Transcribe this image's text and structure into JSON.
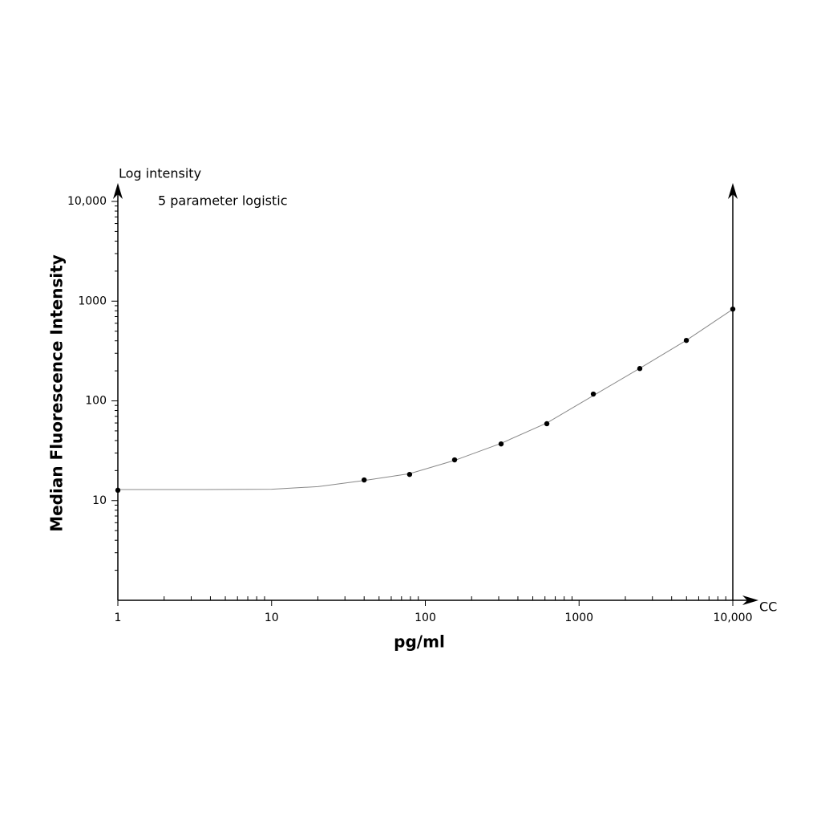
{
  "chart_data": {
    "type": "scatter",
    "y_axis_title": "Log intensity",
    "annotation": "5 parameter logistic",
    "ylabel": "Median Fluorescence Intensity",
    "xlabel": "pg/ml",
    "x_axis_end_label": "CC",
    "xscale": "log",
    "yscale": "log",
    "xlim": [
      1,
      10000
    ],
    "ylim": [
      1,
      10000
    ],
    "xticks": [
      1,
      10,
      100,
      1000,
      {
        "value": 10000,
        "label": "10,000"
      }
    ],
    "yticks": [
      10,
      100,
      1000,
      {
        "value": 10000,
        "label": "10,000"
      }
    ],
    "series": [
      {
        "type": "scatter",
        "color": "#000000",
        "x": [
          1,
          40,
          79,
          155,
          311,
          617,
          1238,
          2483,
          4986,
          10000
        ],
        "values": [
          12.7,
          16.1,
          18.3,
          25.6,
          37,
          59,
          117,
          211,
          404,
          832
        ]
      },
      {
        "type": "line",
        "color": "#888888",
        "x": [
          1,
          3,
          10,
          20,
          40,
          79,
          155,
          311,
          617,
          1238,
          2483,
          4986,
          10000
        ],
        "values": [
          12.9,
          12.9,
          13.0,
          13.8,
          15.9,
          18.6,
          25.3,
          37.5,
          60,
          113,
          212,
          405,
          830
        ]
      }
    ]
  }
}
